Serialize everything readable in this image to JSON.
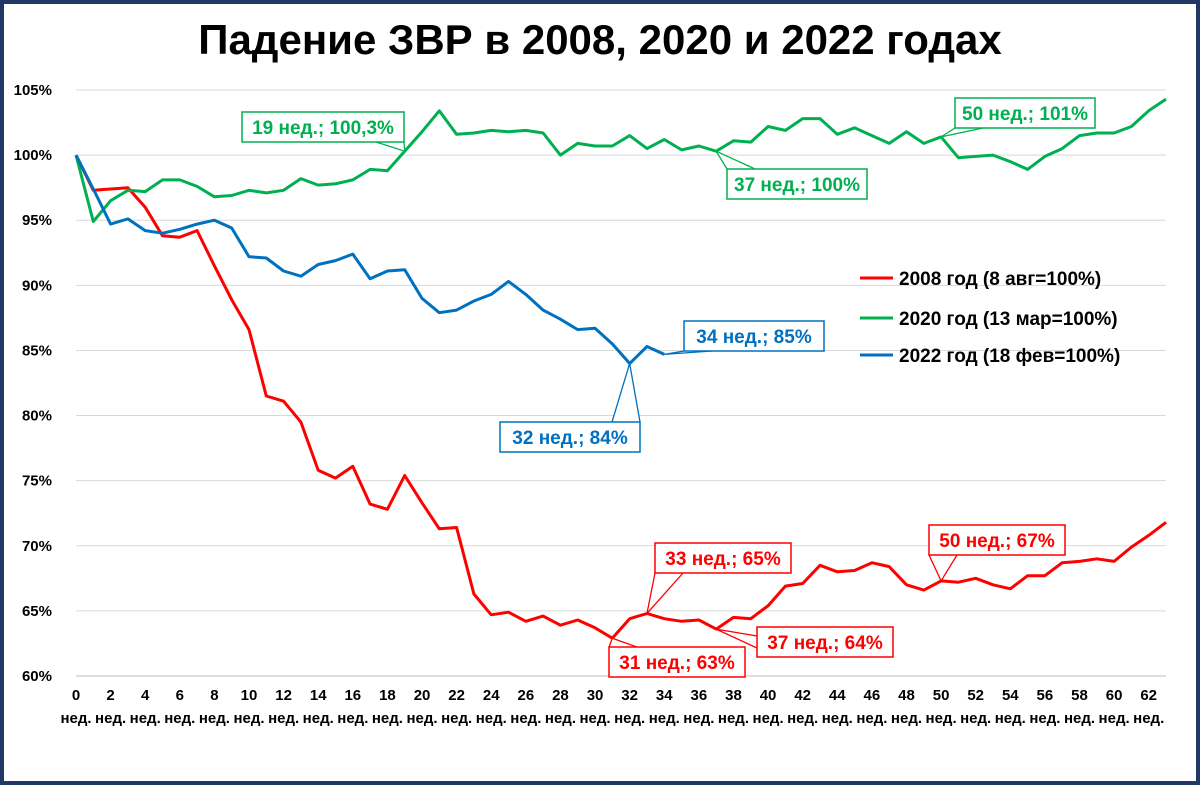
{
  "chart_data": {
    "type": "line",
    "title": "Падение ЗВР в 2008, 2020 и 2022 годах",
    "xlabel": "",
    "ylabel": "",
    "x_tick_unit": "нед.",
    "x_ticks": [
      0,
      2,
      4,
      6,
      8,
      10,
      12,
      14,
      16,
      18,
      20,
      22,
      24,
      26,
      28,
      30,
      32,
      34,
      36,
      38,
      40,
      42,
      44,
      46,
      48,
      50,
      52,
      54,
      56,
      58,
      60,
      62
    ],
    "y_ticks": [
      60,
      65,
      70,
      75,
      80,
      85,
      90,
      95,
      100,
      105
    ],
    "y_tick_labels": [
      "60%",
      "65%",
      "70%",
      "75%",
      "80%",
      "85%",
      "90%",
      "95%",
      "100%",
      "105%"
    ],
    "xlim": [
      0,
      63
    ],
    "ylim": [
      60,
      105
    ],
    "grid": true,
    "legend_position": "right",
    "series": [
      {
        "name": "2008 год (8 авг=100%)",
        "color": "#ff0000",
        "values": [
          100,
          97.3,
          97.4,
          97.5,
          96.0,
          93.8,
          93.7,
          94.2,
          91.5,
          88.9,
          86.6,
          81.5,
          81.1,
          79.5,
          75.8,
          75.2,
          76.1,
          73.2,
          72.8,
          75.4,
          73.3,
          71.3,
          71.4,
          66.3,
          64.7,
          64.9,
          64.2,
          64.6,
          63.9,
          64.3,
          63.7,
          62.9,
          64.4,
          64.8,
          64.4,
          64.2,
          64.3,
          63.6,
          64.5,
          64.4,
          65.4,
          66.9,
          67.1,
          68.5,
          68.0,
          68.1,
          68.7,
          68.4,
          67.0,
          66.6,
          67.3,
          67.2,
          67.5,
          67.0,
          66.7,
          67.7,
          67.7,
          68.7,
          68.8,
          69.0,
          68.8,
          69.9,
          70.8,
          71.8
        ]
      },
      {
        "name": "2020 год (13 мар=100%)",
        "color": "#00b050",
        "values": [
          100,
          94.9,
          96.5,
          97.3,
          97.2,
          98.1,
          98.1,
          97.6,
          96.8,
          96.9,
          97.3,
          97.1,
          97.3,
          98.2,
          97.7,
          97.8,
          98.1,
          98.9,
          98.8,
          100.3,
          101.8,
          103.4,
          101.6,
          101.7,
          101.9,
          101.8,
          101.9,
          101.7,
          100.0,
          100.9,
          100.7,
          100.7,
          101.5,
          100.5,
          101.2,
          100.4,
          100.7,
          100.3,
          101.1,
          101.0,
          102.2,
          101.9,
          102.8,
          102.8,
          101.6,
          102.1,
          101.5,
          100.9,
          101.8,
          100.9,
          101.4,
          99.8,
          99.9,
          100.0,
          99.5,
          98.9,
          99.9,
          100.5,
          101.5,
          101.7,
          101.7,
          102.2,
          103.4,
          104.3
        ]
      },
      {
        "name": "2022 год (18 фев=100%)",
        "color": "#0070c0",
        "values": [
          100,
          97.4,
          94.7,
          95.1,
          94.2,
          94.0,
          94.3,
          94.7,
          95.0,
          94.4,
          92.2,
          92.1,
          91.1,
          90.7,
          91.6,
          91.9,
          92.4,
          90.5,
          91.1,
          91.2,
          89.0,
          87.9,
          88.1,
          88.8,
          89.3,
          90.3,
          89.3,
          88.1,
          87.4,
          86.6,
          86.7,
          85.5,
          84.0,
          85.3,
          84.7
        ]
      }
    ],
    "annotations": [
      {
        "text": "19 нед.; 100,3%",
        "series": 1,
        "x": 19,
        "y": 100.3,
        "color": "#00b050"
      },
      {
        "text": "37 нед.; 100%",
        "series": 1,
        "x": 37,
        "y": 100.3,
        "color": "#00b050"
      },
      {
        "text": "50 нед.; 101%",
        "series": 1,
        "x": 50,
        "y": 101.4,
        "color": "#00b050"
      },
      {
        "text": "34 нед.; 85%",
        "series": 2,
        "x": 34,
        "y": 84.7,
        "color": "#0070c0"
      },
      {
        "text": "32 нед.; 84%",
        "series": 2,
        "x": 32,
        "y": 84.0,
        "color": "#0070c0"
      },
      {
        "text": "33 нед.; 65%",
        "series": 0,
        "x": 33,
        "y": 64.8,
        "color": "#ff0000"
      },
      {
        "text": "50 нед.; 67%",
        "series": 0,
        "x": 50,
        "y": 67.3,
        "color": "#ff0000"
      },
      {
        "text": "31 нед.; 63%",
        "series": 0,
        "x": 31,
        "y": 62.9,
        "color": "#ff0000"
      },
      {
        "text": "37 нед.; 64%",
        "series": 0,
        "x": 37,
        "y": 63.6,
        "color": "#ff0000"
      }
    ]
  }
}
